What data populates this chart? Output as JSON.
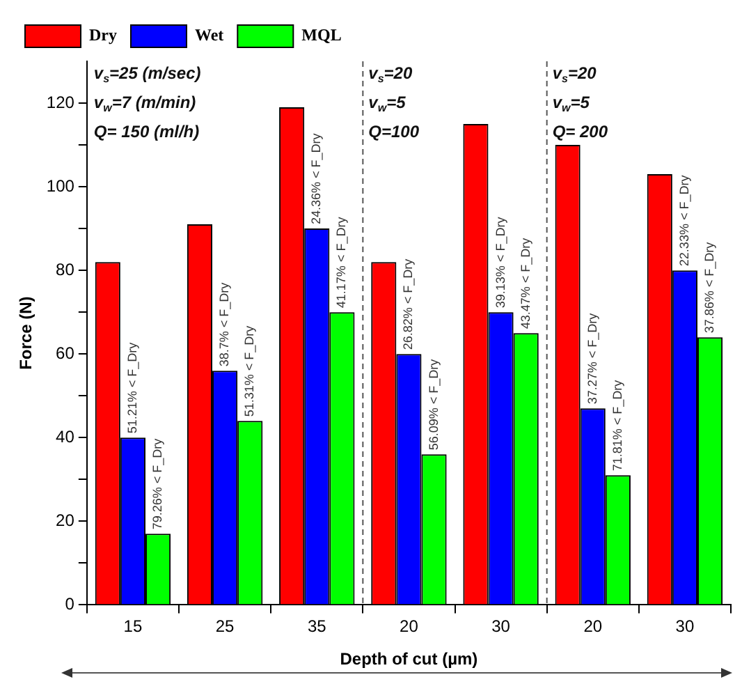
{
  "chart_data": {
    "type": "bar",
    "categories": [
      "15",
      "25",
      "35",
      "20",
      "30",
      "20",
      "30"
    ],
    "series": [
      {
        "name": "Dry",
        "color": "#ff0000",
        "values": [
          82,
          91,
          119,
          82,
          115,
          110,
          103
        ]
      },
      {
        "name": "Wet",
        "color": "#0000ff",
        "values": [
          40,
          56,
          90,
          60,
          70,
          47,
          80
        ],
        "value_labels": [
          "51.21% < F_Dry",
          "38.7% < F_Dry",
          "24.36% < F_Dry",
          "26.82% < F_Dry",
          "39.13% < F_Dry",
          "37.27% < F_Dry",
          "22.33% < F_Dry"
        ]
      },
      {
        "name": "MQL",
        "color": "#00ff00",
        "values": [
          17,
          44,
          70,
          36,
          65,
          31,
          64
        ],
        "value_labels": [
          "79.26% < F_Dry",
          "51.31% < F_Dry",
          "41.17% < F_Dry",
          "56.09% < F_Dry",
          "43.47% < F_Dry",
          "71.81% < F_Dry",
          "37.86% < F_Dry"
        ]
      }
    ],
    "xlabel": "Depth of cut (µm)",
    "ylabel": "Force (N)",
    "ylim": [
      0,
      130
    ],
    "yticks": [
      0,
      {
        "value": 10,
        "label": null
      },
      20,
      {
        "value": 30,
        "label": null
      },
      40,
      {
        "value": 50,
        "label": null
      },
      60,
      {
        "value": 70,
        "label": null
      },
      80,
      {
        "value": 90,
        "label": null
      },
      100,
      {
        "value": 110,
        "label": null
      },
      120
    ],
    "annotations": [
      "v$_{s}$=25 (m/sec)",
      "v$_{w}$=7 (m/min)",
      "Q= 150 (ml/h)",
      "v$_{s}$=20",
      "v$_{w}$=5",
      "Q=100",
      "v$_{s}$=20",
      "v$_{w}$=5",
      "Q= 200"
    ],
    "legend": "top",
    "grid": false
  }
}
